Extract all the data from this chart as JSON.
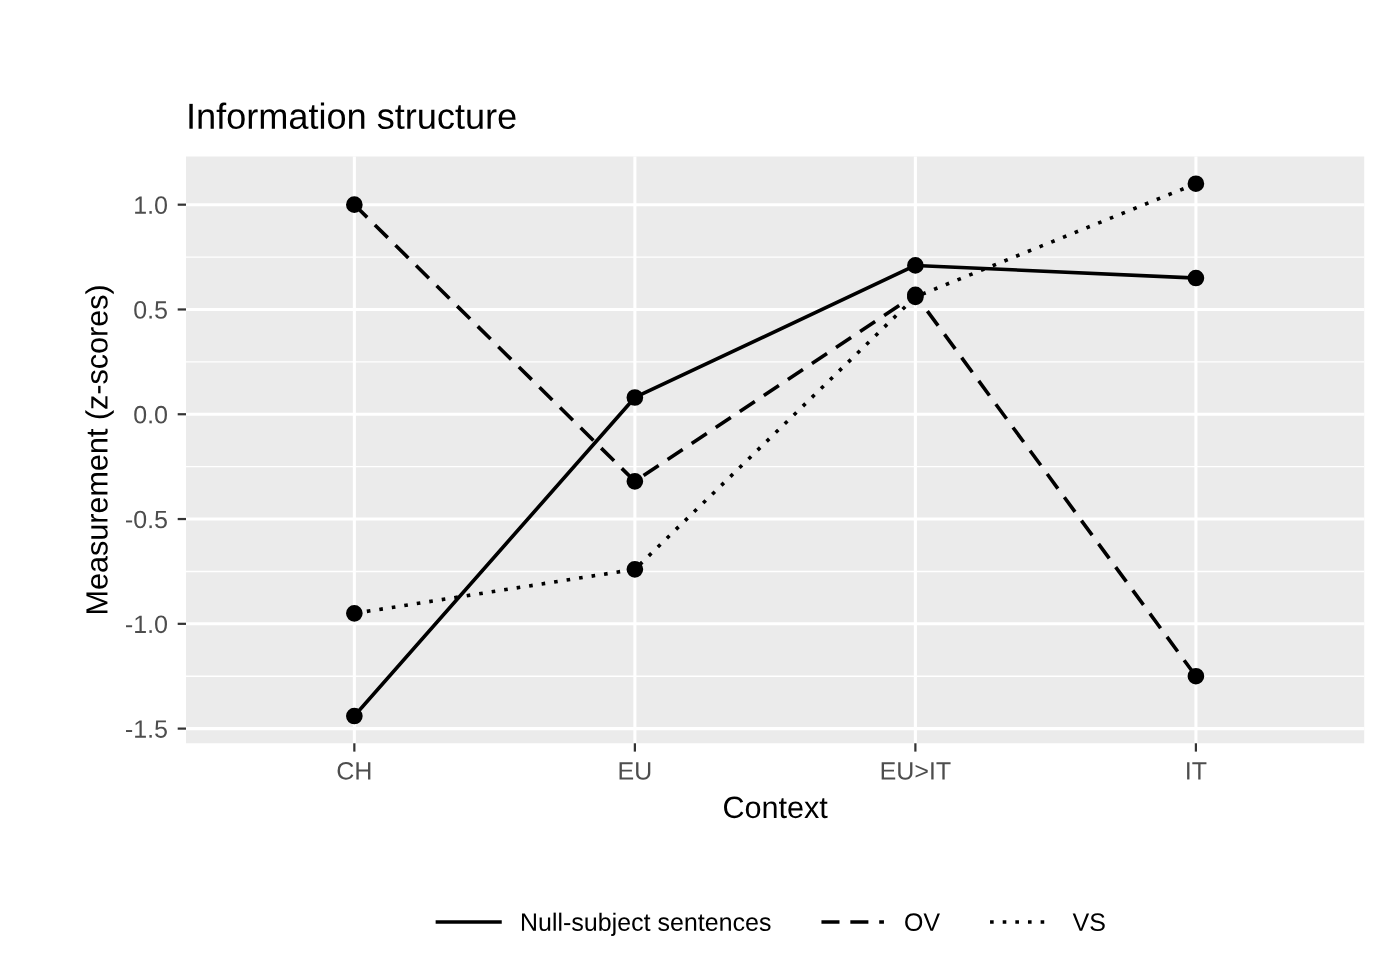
{
  "chart_data": {
    "type": "line",
    "title": "Information structure",
    "xlabel": "Context",
    "ylabel": "Measurement (z-scores)",
    "categories": [
      "CH",
      "EU",
      "EU>IT",
      "IT"
    ],
    "series": [
      {
        "name": "Null-subject sentences",
        "color": "#000000",
        "line_style": "solid",
        "values": [
          -1.44,
          0.08,
          0.71,
          0.65
        ]
      },
      {
        "name": "OV",
        "color": "#000000",
        "line_style": "dashed",
        "values": [
          1.0,
          -0.32,
          0.57,
          -1.25
        ]
      },
      {
        "name": "VS",
        "color": "#000000",
        "line_style": "dotted",
        "values": [
          -0.95,
          -0.74,
          0.56,
          1.1
        ]
      }
    ],
    "ylim": [
      -1.57,
      1.23
    ],
    "yticks": [
      -1.5,
      {
        "value": -1,
        "label": "-1.0"
      },
      -0.5,
      {
        "value": 0,
        "label": "0.0"
      },
      0.5,
      {
        "value": 1,
        "label": "1.0"
      }
    ],
    "grid": true,
    "legend": "bottom",
    "marker": "circle"
  }
}
